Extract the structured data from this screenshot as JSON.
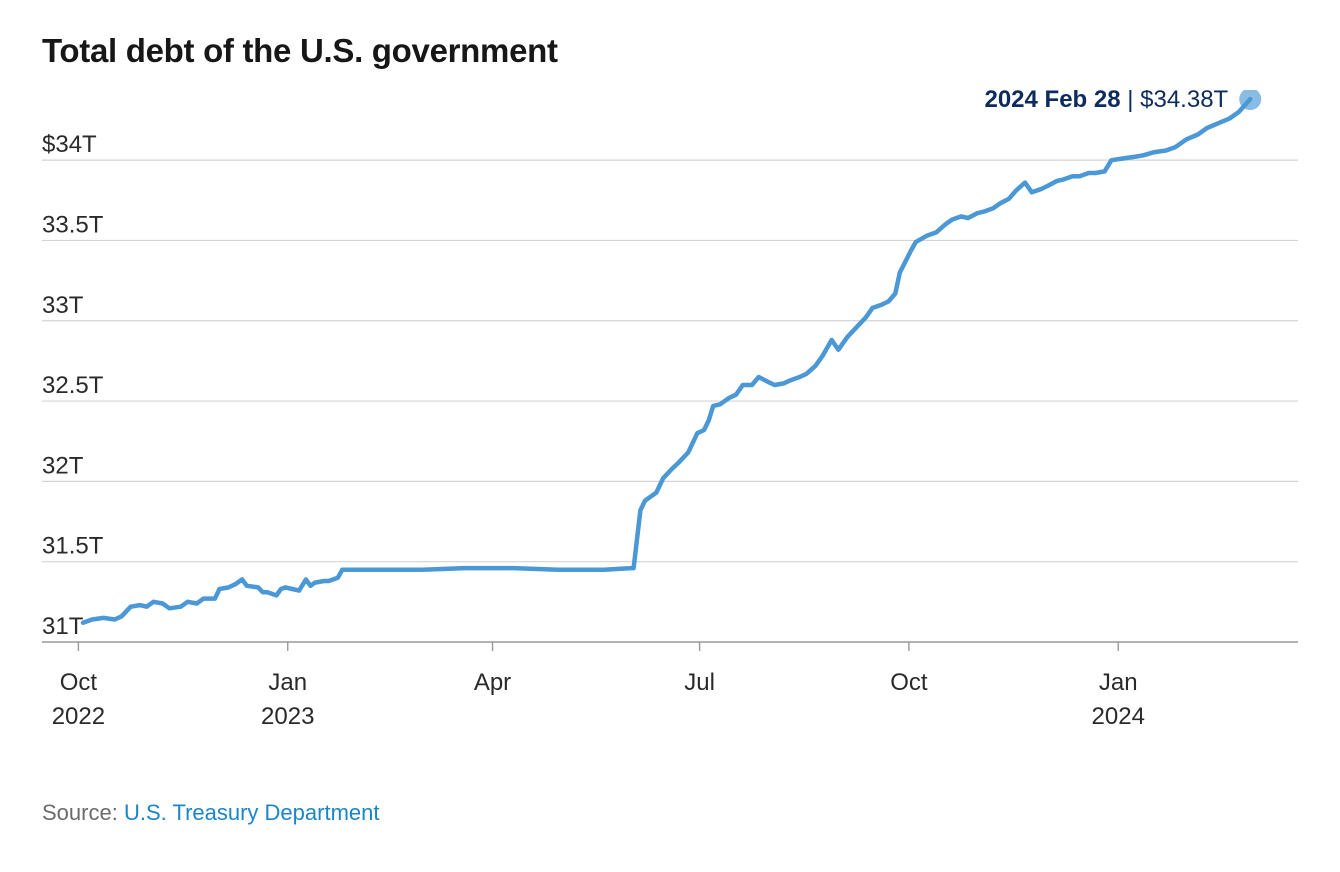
{
  "chart_data": {
    "type": "line",
    "title": "Total debt of the U.S. government",
    "xlabel": "",
    "ylabel": "",
    "y_unit": "trillions of USD",
    "ylim": [
      31,
      34.25
    ],
    "xlim": [
      "2022-09-15",
      "2024-03-20"
    ],
    "y_ticks": [
      {
        "value": 31,
        "label": "31T"
      },
      {
        "value": 31.5,
        "label": "31.5T"
      },
      {
        "value": 32,
        "label": "32T"
      },
      {
        "value": 32.5,
        "label": "32.5T"
      },
      {
        "value": 33,
        "label": "33T"
      },
      {
        "value": 33.5,
        "label": "33.5T"
      },
      {
        "value": 34,
        "label": "$34T"
      }
    ],
    "x_ticks": [
      {
        "date": "2022-10-01",
        "label": "Oct",
        "sub": "2022"
      },
      {
        "date": "2023-01-01",
        "label": "Jan",
        "sub": "2023"
      },
      {
        "date": "2023-04-01",
        "label": "Apr",
        "sub": ""
      },
      {
        "date": "2023-07-01",
        "label": "Jul",
        "sub": ""
      },
      {
        "date": "2023-10-01",
        "label": "Oct",
        "sub": ""
      },
      {
        "date": "2024-01-01",
        "label": "Jan",
        "sub": "2024"
      }
    ],
    "grid": "horizontal",
    "series": [
      {
        "color": "#4a98d6",
        "points": [
          [
            "2022-10-03",
            31.12
          ],
          [
            "2022-10-07",
            31.14
          ],
          [
            "2022-10-12",
            31.15
          ],
          [
            "2022-10-17",
            31.14
          ],
          [
            "2022-10-20",
            31.16
          ],
          [
            "2022-10-24",
            31.22
          ],
          [
            "2022-10-28",
            31.23
          ],
          [
            "2022-10-31",
            31.22
          ],
          [
            "2022-11-03",
            31.25
          ],
          [
            "2022-11-07",
            31.24
          ],
          [
            "2022-11-10",
            31.21
          ],
          [
            "2022-11-15",
            31.22
          ],
          [
            "2022-11-18",
            31.25
          ],
          [
            "2022-11-22",
            31.24
          ],
          [
            "2022-11-25",
            31.27
          ],
          [
            "2022-11-30",
            31.27
          ],
          [
            "2022-12-02",
            31.33
          ],
          [
            "2022-12-06",
            31.34
          ],
          [
            "2022-12-09",
            31.36
          ],
          [
            "2022-12-12",
            31.39
          ],
          [
            "2022-12-14",
            31.35
          ],
          [
            "2022-12-19",
            31.34
          ],
          [
            "2022-12-21",
            31.31
          ],
          [
            "2022-12-23",
            31.31
          ],
          [
            "2022-12-27",
            31.29
          ],
          [
            "2022-12-29",
            31.33
          ],
          [
            "2022-12-31",
            31.34
          ],
          [
            "2023-01-03",
            31.33
          ],
          [
            "2023-01-06",
            31.32
          ],
          [
            "2023-01-09",
            31.39
          ],
          [
            "2023-01-11",
            31.35
          ],
          [
            "2023-01-13",
            31.37
          ],
          [
            "2023-01-17",
            31.38
          ],
          [
            "2023-01-19",
            31.38
          ],
          [
            "2023-01-23",
            31.4
          ],
          [
            "2023-01-25",
            31.45
          ],
          [
            "2023-02-10",
            31.45
          ],
          [
            "2023-03-01",
            31.45
          ],
          [
            "2023-03-20",
            31.46
          ],
          [
            "2023-04-10",
            31.46
          ],
          [
            "2023-04-30",
            31.45
          ],
          [
            "2023-05-20",
            31.45
          ],
          [
            "2023-06-01",
            31.46
          ],
          [
            "2023-06-02",
            31.46
          ],
          [
            "2023-06-05",
            31.82
          ],
          [
            "2023-06-07",
            31.88
          ],
          [
            "2023-06-09",
            31.9
          ],
          [
            "2023-06-12",
            31.93
          ],
          [
            "2023-06-15",
            32.02
          ],
          [
            "2023-06-19",
            32.08
          ],
          [
            "2023-06-22",
            32.12
          ],
          [
            "2023-06-26",
            32.18
          ],
          [
            "2023-06-30",
            32.3
          ],
          [
            "2023-07-03",
            32.32
          ],
          [
            "2023-07-05",
            32.38
          ],
          [
            "2023-07-07",
            32.47
          ],
          [
            "2023-07-10",
            32.48
          ],
          [
            "2023-07-12",
            32.5
          ],
          [
            "2023-07-14",
            32.52
          ],
          [
            "2023-07-17",
            32.54
          ],
          [
            "2023-07-20",
            32.6
          ],
          [
            "2023-07-24",
            32.6
          ],
          [
            "2023-07-27",
            32.65
          ],
          [
            "2023-07-31",
            32.62
          ],
          [
            "2023-08-03",
            32.6
          ],
          [
            "2023-08-07",
            32.61
          ],
          [
            "2023-08-10",
            32.63
          ],
          [
            "2023-08-14",
            32.65
          ],
          [
            "2023-08-17",
            32.67
          ],
          [
            "2023-08-21",
            32.72
          ],
          [
            "2023-08-24",
            32.78
          ],
          [
            "2023-08-28",
            32.88
          ],
          [
            "2023-08-31",
            32.82
          ],
          [
            "2023-09-04",
            32.9
          ],
          [
            "2023-09-08",
            32.96
          ],
          [
            "2023-09-12",
            33.02
          ],
          [
            "2023-09-15",
            33.08
          ],
          [
            "2023-09-19",
            33.1
          ],
          [
            "2023-09-22",
            33.12
          ],
          [
            "2023-09-25",
            33.17
          ],
          [
            "2023-09-27",
            33.3
          ],
          [
            "2023-10-02",
            33.44
          ],
          [
            "2023-10-04",
            33.49
          ],
          [
            "2023-10-09",
            33.53
          ],
          [
            "2023-10-13",
            33.55
          ],
          [
            "2023-10-17",
            33.6
          ],
          [
            "2023-10-20",
            33.63
          ],
          [
            "2023-10-24",
            33.65
          ],
          [
            "2023-10-27",
            33.64
          ],
          [
            "2023-10-31",
            33.67
          ],
          [
            "2023-11-03",
            33.68
          ],
          [
            "2023-11-07",
            33.7
          ],
          [
            "2023-11-10",
            33.73
          ],
          [
            "2023-11-14",
            33.76
          ],
          [
            "2023-11-17",
            33.81
          ],
          [
            "2023-11-21",
            33.86
          ],
          [
            "2023-11-24",
            33.8
          ],
          [
            "2023-11-28",
            33.82
          ],
          [
            "2023-12-01",
            33.84
          ],
          [
            "2023-12-05",
            33.87
          ],
          [
            "2023-12-08",
            33.88
          ],
          [
            "2023-12-12",
            33.9
          ],
          [
            "2023-12-15",
            33.9
          ],
          [
            "2023-12-19",
            33.92
          ],
          [
            "2023-12-22",
            33.92
          ],
          [
            "2023-12-26",
            33.93
          ],
          [
            "2023-12-29",
            34.0
          ],
          [
            "2024-01-03",
            34.01
          ],
          [
            "2024-01-08",
            34.02
          ],
          [
            "2024-01-12",
            34.03
          ],
          [
            "2024-01-17",
            34.05
          ],
          [
            "2024-01-22",
            34.06
          ],
          [
            "2024-01-26",
            34.08
          ],
          [
            "2024-01-31",
            34.13
          ],
          [
            "2024-02-05",
            34.16
          ],
          [
            "2024-02-09",
            34.2
          ],
          [
            "2024-02-14",
            34.23
          ],
          [
            "2024-02-19",
            34.26
          ],
          [
            "2024-02-23",
            34.3
          ],
          [
            "2024-02-28",
            34.38
          ]
        ]
      }
    ],
    "annotation": {
      "date": "2024-02-28",
      "label_date": "2024 Feb 28",
      "label_value": "$34.38T",
      "separator": "|"
    }
  },
  "source": {
    "prefix": "Source:",
    "name": "U.S. Treasury Department"
  }
}
